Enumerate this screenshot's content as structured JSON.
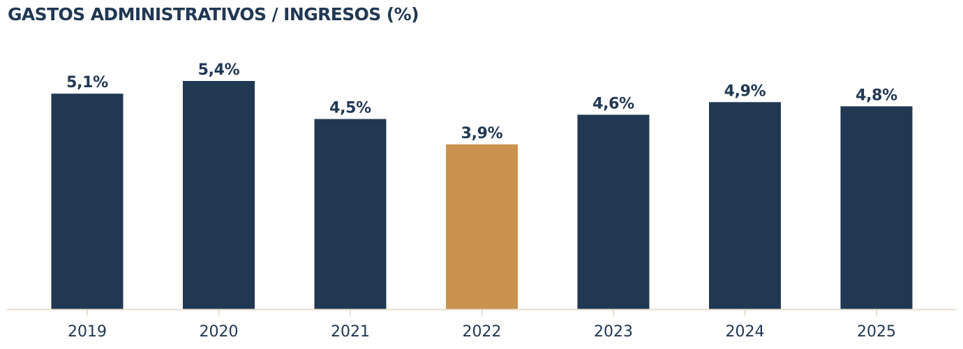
{
  "chart_data": {
    "type": "bar",
    "title": "GASTOS ADMINISTRATIVOS / INGRESOS (%)",
    "xlabel": "",
    "ylabel": "",
    "categories": [
      "2019",
      "2020",
      "2021",
      "2022",
      "2023",
      "2024",
      "2025"
    ],
    "values": [
      5.1,
      5.4,
      4.5,
      3.9,
      4.6,
      4.9,
      4.8
    ],
    "value_labels": [
      "5,1%",
      "5,4%",
      "4,5%",
      "3,9%",
      "4,6%",
      "4,9%",
      "4,8%"
    ],
    "highlight_category": "2022",
    "colors": {
      "bar": "#213853",
      "highlight": "#c9924f",
      "axis": "#e8dccc",
      "text": "#213853"
    },
    "ylim": [
      0,
      5.4
    ],
    "grid": false,
    "legend": "none"
  }
}
